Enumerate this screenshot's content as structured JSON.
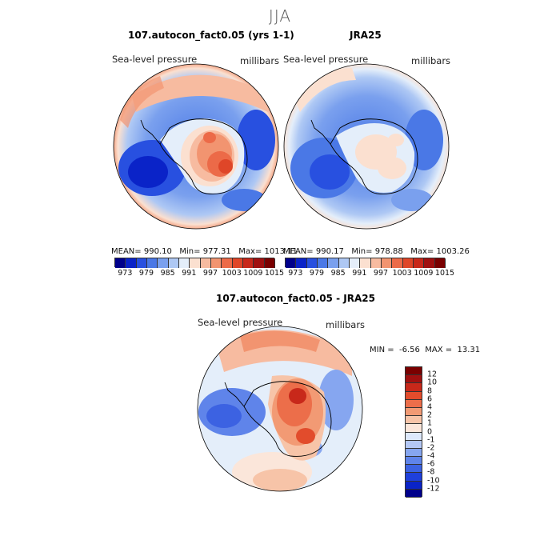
{
  "season": "JJA",
  "panels": [
    {
      "title": "107.autocon_fact0.05 (yrs 1-1)",
      "variable": "Sea-level pressure",
      "units": "millibars",
      "stats": {
        "mean_label": "MEAN=",
        "mean": "990.10",
        "min_label": "Min=",
        "min": "977.31",
        "max_label": "Max=",
        "max": "1013.11"
      }
    },
    {
      "title": "JRA25",
      "variable": "Sea-level pressure",
      "units": "millibars",
      "stats": {
        "mean_label": "MEAN=",
        "mean": "990.17",
        "min_label": "Min=",
        "min": "978.88",
        "max_label": "Max=",
        "max": "1003.26"
      }
    }
  ],
  "diff": {
    "title": "107.autocon_fact0.05 - JRA25",
    "variable": "Sea-level pressure",
    "units": "millibars",
    "min_label": "MIN =",
    "min": "-6.56",
    "max_label": "MAX =",
    "max": "13.31"
  },
  "colors": {
    "abs_scale": [
      "#00008b",
      "#0a23c8",
      "#2850e0",
      "#4a78e6",
      "#7aa0ee",
      "#aec8f4",
      "#e4eefa",
      "#fbe0d0",
      "#f7bba0",
      "#f29470",
      "#ec6a48",
      "#df4628",
      "#c8281a",
      "#a01010",
      "#7a0000"
    ],
    "diff_scale": [
      "#00008b",
      "#0a23c8",
      "#1f40dc",
      "#3c62e2",
      "#5f84ea",
      "#86a6f0",
      "#b4c8f6",
      "#dde8fb",
      "#fbe6da",
      "#f7c4a8",
      "#f29a74",
      "#ec6e4a",
      "#e24c2c",
      "#c8281a",
      "#a01010",
      "#7a0000"
    ]
  },
  "chart_data": [
    {
      "type": "heatmap",
      "title": "107.autocon_fact0.05 (yrs 1-1)",
      "subtitle": "Sea-level pressure",
      "units": "millibars",
      "colorbar_ticks": [
        "973",
        "979",
        "985",
        "991",
        "997",
        "1003",
        "1009",
        "1015"
      ],
      "colorbar_levels": [
        969,
        970.5,
        973,
        976,
        979,
        982,
        985,
        988,
        991,
        994,
        997,
        1000,
        1003,
        1006,
        1009,
        1012,
        1015
      ],
      "mean": 990.1,
      "min": 977.31,
      "max": 1013.11
    },
    {
      "type": "heatmap",
      "title": "JRA25",
      "subtitle": "Sea-level pressure",
      "units": "millibars",
      "colorbar_ticks": [
        "973",
        "979",
        "985",
        "991",
        "997",
        "1003",
        "1009",
        "1015"
      ],
      "colorbar_levels": [
        969,
        970.5,
        973,
        976,
        979,
        982,
        985,
        988,
        991,
        994,
        997,
        1000,
        1003,
        1006,
        1009,
        1012,
        1015
      ],
      "mean": 990.17,
      "min": 978.88,
      "max": 1003.26
    },
    {
      "type": "heatmap",
      "title": "107.autocon_fact0.05 - JRA25",
      "subtitle": "Sea-level pressure",
      "units": "millibars",
      "colorbar_ticks": [
        "12",
        "10",
        "8",
        "6",
        "4",
        "2",
        "1",
        "0",
        "-1",
        "-2",
        "-4",
        "-6",
        "-8",
        "-10",
        "-12"
      ],
      "min": -6.56,
      "max": 13.31
    }
  ]
}
